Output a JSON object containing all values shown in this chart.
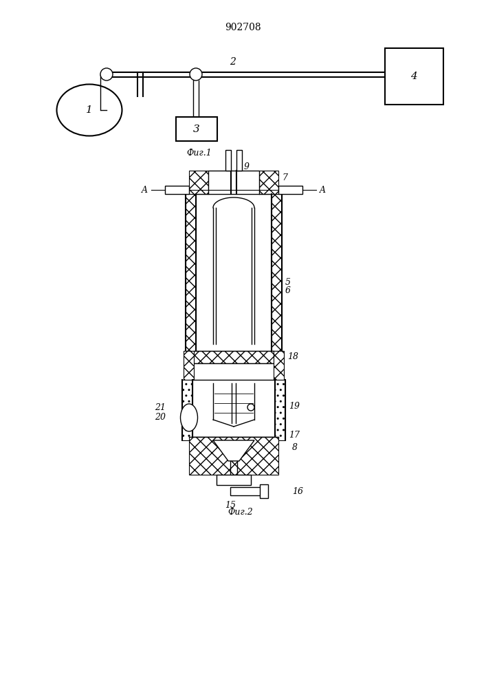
{
  "title": "902708",
  "fig1_label": "Фиг.1",
  "fig2_label": "Фиг.2",
  "bg_color": "#ffffff",
  "line_color": "#000000",
  "hatch_color": "#000000",
  "label_color": "#222222",
  "title_fontsize": 10,
  "label_fontsize": 9,
  "annotation_fontsize": 9
}
